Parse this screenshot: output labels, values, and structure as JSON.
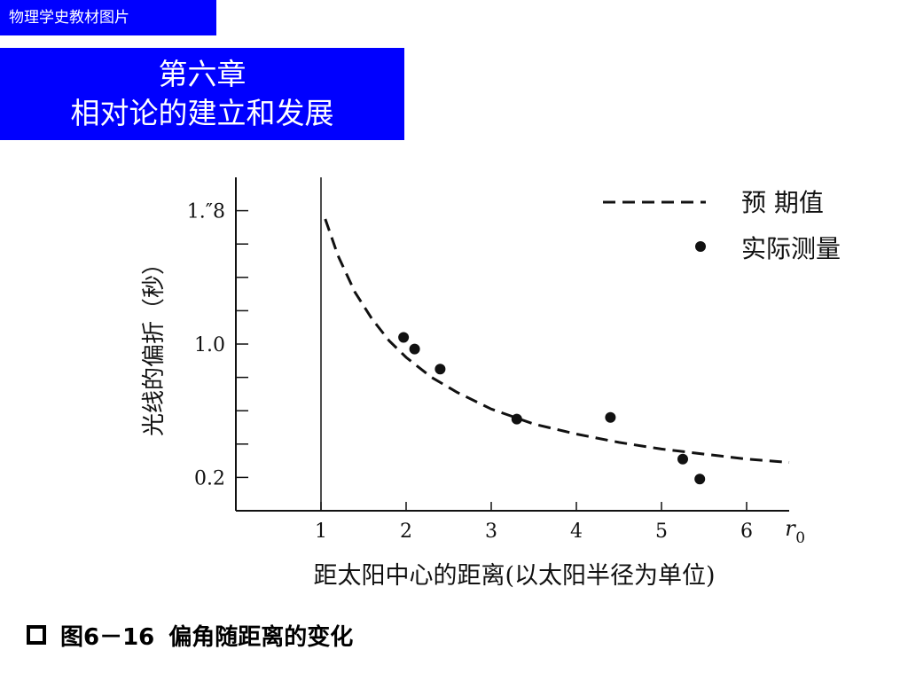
{
  "header": {
    "top_label": "物理学史教材图片",
    "chapter": "第六章",
    "title": "相对论的建立和发展"
  },
  "chart_data": {
    "type": "scatter",
    "ylabel": "光线的偏折（秒）",
    "xlabel": "距太阳中心的距离(以太阳半径为单位)",
    "x_unit_label": "r",
    "x_unit_sub": "0",
    "xlim": [
      0,
      6.5
    ],
    "ylim": [
      0,
      2.0
    ],
    "x_ticks": [
      1,
      2,
      3,
      4,
      5,
      6
    ],
    "x_tick_labels": [
      "1",
      "2",
      "3",
      "4",
      "5",
      "6"
    ],
    "y_ticks_labeled": [
      0.2,
      1.0,
      1.8
    ],
    "y_tick_labels": [
      "0.2",
      "1.0",
      "1.″8"
    ],
    "y_ticks_minor": [
      0.4,
      0.6,
      0.8,
      1.2,
      1.4,
      1.6
    ],
    "legend": {
      "position": "top-right",
      "expected_label": "预 期值",
      "measured_label": "实际测量"
    },
    "series": [
      {
        "name": "预 期值",
        "style": "dashed",
        "x": [
          1.05,
          1.2,
          1.4,
          1.6,
          1.8,
          2.0,
          2.3,
          2.6,
          3.0,
          3.5,
          4.0,
          4.5,
          5.0,
          5.5,
          6.0,
          6.5
        ],
        "y": [
          1.75,
          1.53,
          1.31,
          1.15,
          1.02,
          0.92,
          0.8,
          0.71,
          0.61,
          0.52,
          0.46,
          0.41,
          0.37,
          0.34,
          0.31,
          0.29
        ]
      },
      {
        "name": "实际测量",
        "style": "points",
        "x": [
          1.97,
          2.1,
          2.4,
          3.3,
          4.4,
          5.25,
          5.45
        ],
        "y": [
          1.04,
          0.97,
          0.85,
          0.55,
          0.56,
          0.31,
          0.19
        ]
      }
    ]
  },
  "caption": {
    "figure_number": "图6－16",
    "text": "偏角随距离的变化"
  }
}
